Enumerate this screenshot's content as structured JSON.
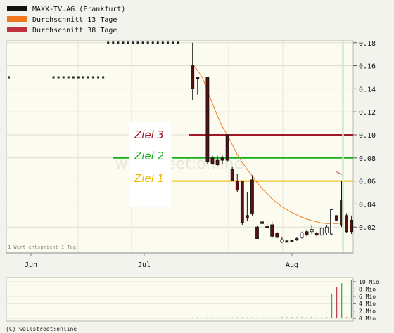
{
  "chart_data": {
    "type": "candlestick",
    "legend": [
      {
        "label": "MAXX-TV.AG (Frankfurt)",
        "color": "#111111"
      },
      {
        "label": "Durchschnitt 13 Tage",
        "color": "#f07820"
      },
      {
        "label": "Durchschnitt 38 Tage",
        "color": "#c03040"
      }
    ],
    "y_ticks": [
      0.02,
      0.04,
      0.06,
      0.08,
      0.1,
      0.12,
      0.14,
      0.16,
      0.18
    ],
    "y_tick_labels": [
      "0.02",
      "0.04",
      "0.06",
      "0.08",
      "0.10",
      "0.12",
      "0.14",
      "0.16",
      "0.18"
    ],
    "x_labels": [
      "Jun",
      "Jul",
      "Aug"
    ],
    "watermark": "wallstreet:online",
    "note": "1 Wert entspricht 1 Tag",
    "targets": [
      {
        "label": "Ziel 3",
        "value": 0.1,
        "color": "#a01828",
        "labelColor": "#a01828"
      },
      {
        "label": "Ziel 2",
        "value": 0.08,
        "color": "#18b018",
        "labelColor": "#18b018"
      },
      {
        "label": "Ziel 1",
        "value": 0.06,
        "color": "#f0b800",
        "labelColor": "#f0b800"
      }
    ],
    "no_trade_markers": [
      {
        "price": 0.15,
        "from": 0,
        "to": 0
      },
      {
        "price": 0.15,
        "from": 9,
        "to": 19
      },
      {
        "price": 0.18,
        "from": 20,
        "to": 34
      }
    ],
    "candles": [
      {
        "i": 37,
        "open": 0.16,
        "high": 0.18,
        "low": 0.13,
        "close": 0.14
      },
      {
        "i": 38,
        "open": 0.15,
        "high": 0.15,
        "low": 0.135,
        "close": 0.15
      },
      {
        "i": 40,
        "open": 0.15,
        "high": 0.15,
        "low": 0.075,
        "close": 0.077
      },
      {
        "i": 41,
        "open": 0.08,
        "high": 0.082,
        "low": 0.074,
        "close": 0.075
      },
      {
        "i": 42,
        "open": 0.078,
        "high": 0.082,
        "low": 0.073,
        "close": 0.074
      },
      {
        "i": 43,
        "open": 0.08,
        "high": 0.082,
        "low": 0.075,
        "close": 0.078
      },
      {
        "i": 44,
        "open": 0.1,
        "high": 0.1,
        "low": 0.077,
        "close": 0.078
      },
      {
        "i": 45,
        "open": 0.07,
        "high": 0.072,
        "low": 0.06,
        "close": 0.06
      },
      {
        "i": 46,
        "open": 0.06,
        "high": 0.066,
        "low": 0.05,
        "close": 0.052
      },
      {
        "i": 47,
        "open": 0.06,
        "high": 0.06,
        "low": 0.022,
        "close": 0.024
      },
      {
        "i": 48,
        "open": 0.03,
        "high": 0.05,
        "low": 0.025,
        "close": 0.028
      },
      {
        "i": 49,
        "open": 0.061,
        "high": 0.065,
        "low": 0.03,
        "close": 0.032
      },
      {
        "i": 50,
        "open": 0.02,
        "high": 0.021,
        "low": 0.01,
        "close": 0.01
      },
      {
        "i": 51,
        "open": 0.0245,
        "high": 0.025,
        "low": 0.0225,
        "close": 0.023
      },
      {
        "i": 52,
        "open": 0.021,
        "high": 0.024,
        "low": 0.019,
        "close": 0.02
      },
      {
        "i": 53,
        "open": 0.022,
        "high": 0.025,
        "low": 0.01,
        "close": 0.012
      },
      {
        "i": 54,
        "open": 0.015,
        "high": 0.016,
        "low": 0.01,
        "close": 0.011
      },
      {
        "i": 55,
        "open": 0.007,
        "high": 0.011,
        "low": 0.006,
        "close": 0.009
      },
      {
        "i": 56,
        "open": 0.008,
        "high": 0.009,
        "low": 0.007,
        "close": 0.008
      },
      {
        "i": 57,
        "open": 0.0085,
        "high": 0.009,
        "low": 0.008,
        "close": 0.008
      },
      {
        "i": 58,
        "open": 0.01,
        "high": 0.011,
        "low": 0.008,
        "close": 0.009
      },
      {
        "i": 59,
        "open": 0.011,
        "high": 0.016,
        "low": 0.01,
        "close": 0.015
      },
      {
        "i": 60,
        "open": 0.016,
        "high": 0.018,
        "low": 0.012,
        "close": 0.013
      },
      {
        "i": 61,
        "open": 0.016,
        "high": 0.022,
        "low": 0.014,
        "close": 0.018
      },
      {
        "i": 62,
        "open": 0.015,
        "high": 0.016,
        "low": 0.012,
        "close": 0.013
      },
      {
        "i": 63,
        "open": 0.013,
        "high": 0.02,
        "low": 0.012,
        "close": 0.019
      },
      {
        "i": 64,
        "open": 0.015,
        "high": 0.022,
        "low": 0.013,
        "close": 0.02
      },
      {
        "i": 65,
        "open": 0.014,
        "high": 0.036,
        "low": 0.013,
        "close": 0.035
      },
      {
        "i": 66,
        "open": 0.03,
        "high": 0.03,
        "low": 0.025,
        "close": 0.026
      },
      {
        "i": 67,
        "open": 0.043,
        "high": 0.06,
        "low": 0.02,
        "close": 0.022
      },
      {
        "i": 68,
        "open": 0.03,
        "high": 0.032,
        "low": 0.015,
        "close": 0.016
      },
      {
        "i": 69,
        "open": 0.026,
        "high": 0.03,
        "low": 0.014,
        "close": 0.016
      }
    ],
    "ma13": [
      [
        37,
        0.1615
      ],
      [
        38,
        0.156
      ],
      [
        39,
        0.1495
      ],
      [
        40,
        0.138
      ],
      [
        41,
        0.127
      ],
      [
        42,
        0.1165
      ],
      [
        43,
        0.107
      ],
      [
        44,
        0.1
      ],
      [
        45,
        0.0915
      ],
      [
        46,
        0.083
      ],
      [
        47,
        0.076
      ],
      [
        48,
        0.07
      ],
      [
        49,
        0.0645
      ],
      [
        50,
        0.0585
      ],
      [
        51,
        0.0535
      ],
      [
        52,
        0.049
      ],
      [
        53,
        0.0445
      ],
      [
        54,
        0.041
      ],
      [
        55,
        0.0375
      ],
      [
        56,
        0.035
      ],
      [
        57,
        0.0325
      ],
      [
        58,
        0.0305
      ],
      [
        59,
        0.0285
      ],
      [
        60,
        0.027
      ],
      [
        61,
        0.0255
      ],
      [
        62,
        0.0245
      ],
      [
        63,
        0.0235
      ],
      [
        64,
        0.023
      ],
      [
        65,
        0.023
      ],
      [
        66,
        0.023
      ],
      [
        67,
        0.0235
      ],
      [
        68,
        0.0235
      ],
      [
        69,
        0.0235
      ]
    ],
    "ma38": [
      [
        66,
        0.068
      ],
      [
        67,
        0.0655
      ]
    ],
    "volume_ticks": [
      0,
      2,
      4,
      6,
      8,
      10
    ],
    "volume_tick_labels": [
      "0 Mio",
      "2 Mio",
      "4 Mio",
      "6 Mio",
      "8 Mio",
      "10 Mio"
    ],
    "volumes": [
      [
        37,
        0.25
      ],
      [
        38,
        0.25
      ],
      [
        40,
        0.25
      ],
      [
        41,
        0.25
      ],
      [
        42,
        0.25
      ],
      [
        43,
        0.25
      ],
      [
        44,
        0.25
      ],
      [
        45,
        0.25
      ],
      [
        46,
        0.25
      ],
      [
        47,
        0.25
      ],
      [
        48,
        0.25
      ],
      [
        49,
        0.25
      ],
      [
        50,
        0.25
      ],
      [
        51,
        0.25
      ],
      [
        52,
        0.25
      ],
      [
        53,
        0.25
      ],
      [
        54,
        0.25
      ],
      [
        55,
        0.3
      ],
      [
        56,
        0.3
      ],
      [
        57,
        0.3
      ],
      [
        58,
        0.3
      ],
      [
        59,
        0.3
      ],
      [
        60,
        0.3
      ],
      [
        61,
        0.4
      ],
      [
        62,
        0.3
      ],
      [
        63,
        0.3
      ],
      [
        64,
        0.3
      ],
      [
        65,
        6.8
      ],
      [
        66,
        8.6
      ],
      [
        67,
        9.6
      ],
      [
        68,
        0.3
      ],
      [
        69,
        10.4
      ]
    ]
  },
  "footer": {
    "copyright": "(C) wallstreet:online"
  }
}
